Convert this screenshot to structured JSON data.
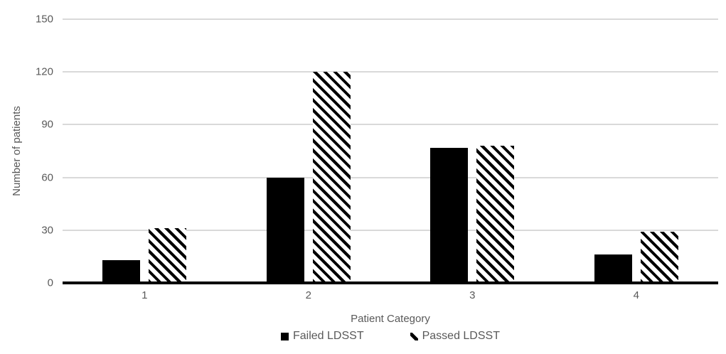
{
  "chart_data": {
    "type": "bar",
    "categories": [
      "1",
      "2",
      "3",
      "4"
    ],
    "series": [
      {
        "name": "Failed LDSST",
        "pattern": "solid",
        "values": [
          13,
          60,
          77,
          16
        ]
      },
      {
        "name": "Passed LDSST",
        "pattern": "diagonal-hatch",
        "values": [
          31,
          120,
          78,
          29
        ]
      }
    ],
    "xlabel": "Patient Category",
    "ylabel": "Number of patients",
    "ylim": [
      0,
      150
    ],
    "yticks": [
      0,
      30,
      60,
      90,
      120,
      150
    ],
    "grid": true,
    "legend_position": "bottom"
  },
  "colors": {
    "bar": "#000000",
    "background": "#ffffff",
    "gridline": "#d9d9d9",
    "axis_line": "#000000",
    "text": "#595959"
  }
}
